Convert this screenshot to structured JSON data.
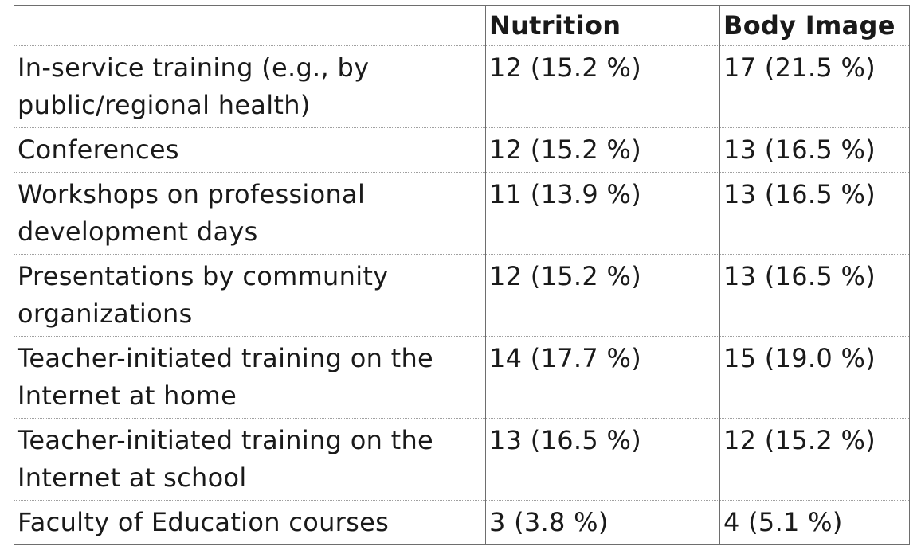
{
  "table": {
    "headers": [
      "",
      "Nutrition",
      "Body Image"
    ],
    "rows": [
      [
        "In-service training (e.g., by public/regional health)",
        "12 (15.2 %)",
        "17 (21.5 %)"
      ],
      [
        "Conferences",
        "12 (15.2 %)",
        "13 (16.5 %)"
      ],
      [
        "Workshops on professional development days",
        "11 (13.9 %)",
        "13 (16.5 %)"
      ],
      [
        "Presentations by community organizations",
        "12 (15.2 %)",
        "13 (16.5 %)"
      ],
      [
        "Teacher-initiated training on the Internet at home",
        "14 (17.7 %)",
        "15 (19.0 %)"
      ],
      [
        "Teacher-initiated training on the Internet at school",
        "13 (16.5 %)",
        "12 (15.2 %)"
      ],
      [
        "Faculty of Education courses",
        "3 (3.8 %)",
        "4 (5.1 %)"
      ]
    ]
  }
}
